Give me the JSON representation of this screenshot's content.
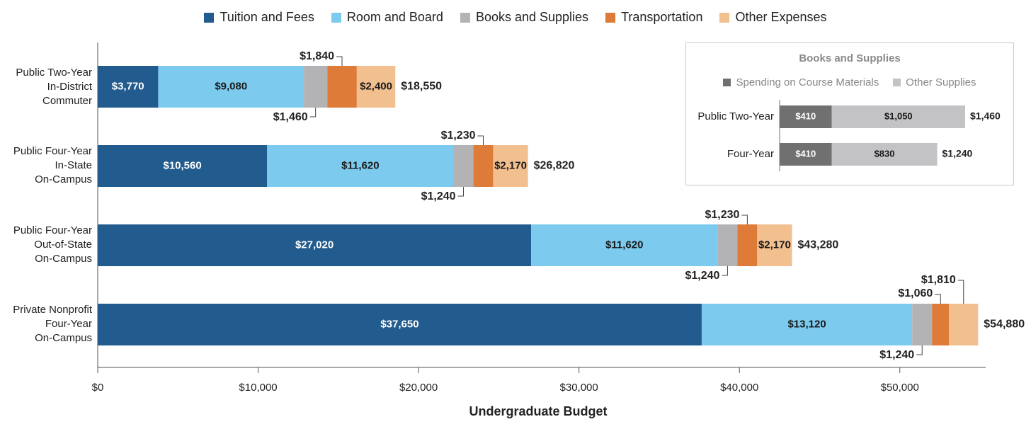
{
  "chart_data": {
    "type": "bar",
    "orientation": "horizontal",
    "stacked": true,
    "xlabel": "Undergraduate Budget",
    "xlim": [
      0,
      55000
    ],
    "xticks": [
      "$0",
      "$10,000",
      "$20,000",
      "$30,000",
      "$40,000",
      "$50,000"
    ],
    "legend_position": "top",
    "categories": [
      "Public Two-Year In-District Commuter",
      "Public Four-Year In-State On-Campus",
      "Public Four-Year Out-of-State On-Campus",
      "Private Nonprofit Four-Year On-Campus"
    ],
    "category_lines": [
      [
        "Public Two-Year",
        "In-District",
        "Commuter"
      ],
      [
        "Public Four-Year",
        "In-State",
        "On-Campus"
      ],
      [
        "Public Four-Year",
        "Out-of-State",
        "On-Campus"
      ],
      [
        "Private Nonprofit",
        "Four-Year",
        "On-Campus"
      ]
    ],
    "series": [
      {
        "name": "Tuition and Fees",
        "color": "#225b8e",
        "values": [
          3770,
          10560,
          27020,
          37650
        ],
        "labels": [
          "$3,770",
          "$10,560",
          "$27,020",
          "$37,650"
        ]
      },
      {
        "name": "Room and Board",
        "color": "#7ccaee",
        "values": [
          9080,
          11620,
          11620,
          13120
        ],
        "labels": [
          "$9,080",
          "$11,620",
          "$11,620",
          "$13,120"
        ]
      },
      {
        "name": "Books and Supplies",
        "color": "#b3b3b6",
        "values": [
          1460,
          1240,
          1240,
          1240
        ],
        "labels": [
          "$1,460",
          "$1,240",
          "$1,240",
          "$1,240"
        ]
      },
      {
        "name": "Transportation",
        "color": "#de7b39",
        "values": [
          1840,
          1230,
          1230,
          1060
        ],
        "labels": [
          "$1,840",
          "$1,230",
          "$1,230",
          "$1,060"
        ]
      },
      {
        "name": "Other Expenses",
        "color": "#f2bf8f",
        "values": [
          2400,
          2170,
          2170,
          1810
        ],
        "labels": [
          "$2,400",
          "$2,170",
          "$2,170",
          "$1,810"
        ]
      }
    ],
    "totals": [
      18550,
      26820,
      43280,
      54880
    ],
    "total_labels": [
      "$18,550",
      "$26,820",
      "$43,280",
      "$54,880"
    ],
    "inset": {
      "title": "Books and Supplies",
      "type": "bar",
      "orientation": "horizontal",
      "stacked": true,
      "categories": [
        "Public Two-Year",
        "Four-Year"
      ],
      "series": [
        {
          "name": "Spending on Course Materials",
          "color": "#707070",
          "values": [
            410,
            410
          ],
          "labels": [
            "$410",
            "$410"
          ]
        },
        {
          "name": "Other Supplies",
          "color": "#c3c3c5",
          "values": [
            1050,
            830
          ],
          "labels": [
            "$1,050",
            "$830"
          ]
        }
      ],
      "totals": [
        1460,
        1240
      ],
      "total_labels": [
        "$1,460",
        "$1,240"
      ]
    }
  }
}
